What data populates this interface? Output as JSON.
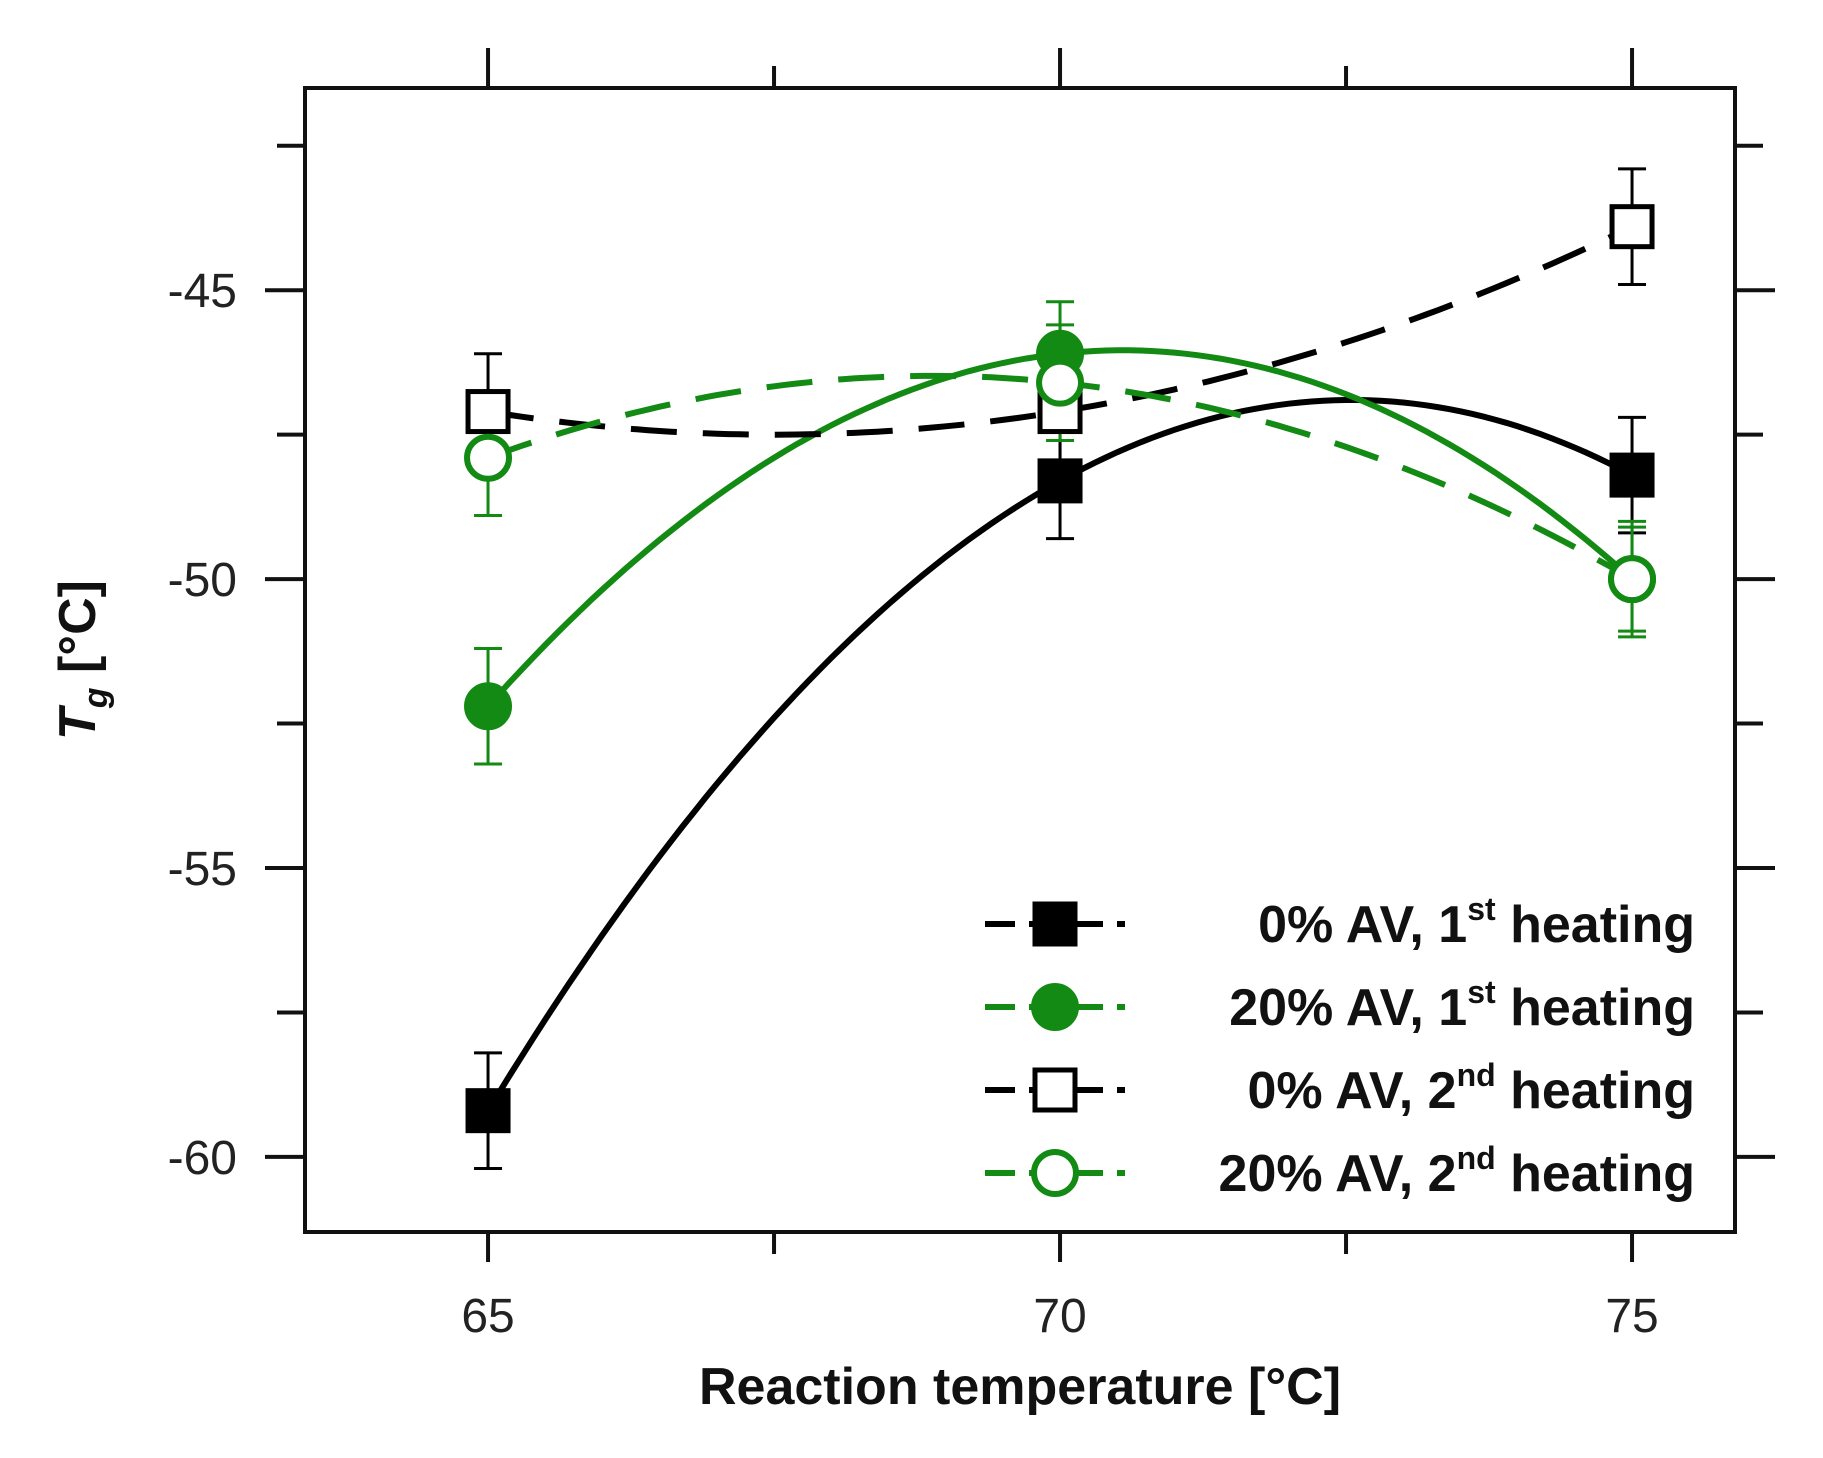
{
  "chart_data": {
    "type": "line",
    "title": "",
    "xlabel": "Reaction temperature [°C]",
    "ylabel": "T",
    "ylabel_subscript": "g",
    "ylabel_unit": " [°C]",
    "xlim": [
      63.4,
      75.9
    ],
    "ylim": [
      -61.3,
      -41.5
    ],
    "x_ticks": [
      65,
      70,
      75
    ],
    "x_tick_labels": [
      "65",
      "70",
      "75"
    ],
    "x_minor_ticks": [
      67.5,
      72.5
    ],
    "y_ticks": [
      -45,
      -50,
      -55,
      -60
    ],
    "y_tick_labels": [
      "-45",
      "-50",
      "-55",
      "-60"
    ],
    "y_minor_ticks": [
      -42.5,
      -47.5,
      -52.5,
      -57.5
    ],
    "legend_position": "bottom-right",
    "series": [
      {
        "name": "0% AV, 1st heating",
        "legend_main": "0% AV, 1",
        "legend_sup": "st",
        "legend_tail": " heating",
        "x": [
          65,
          70,
          75
        ],
        "y": [
          -59.2,
          -48.3,
          -48.2
        ],
        "yerr": [
          1.0,
          1.0,
          1.0
        ],
        "color": "#000000",
        "marker": "square",
        "filled": true,
        "fit": "solid"
      },
      {
        "name": "20% AV, 1st heating",
        "legend_main": "20% AV, 1",
        "legend_sup": "st",
        "legend_tail": " heating",
        "x": [
          65,
          70,
          75
        ],
        "y": [
          -52.2,
          -46.1,
          -50.0
        ],
        "yerr": [
          1.0,
          0.9,
          0.9
        ],
        "color": "#138a13",
        "marker": "circle",
        "filled": true,
        "fit": "solid"
      },
      {
        "name": "0% AV, 2nd heating",
        "legend_main": "0% AV, 2",
        "legend_sup": "nd",
        "legend_tail": " heating",
        "x": [
          65,
          70,
          75
        ],
        "y": [
          -47.1,
          -47.1,
          -43.9
        ],
        "yerr": [
          1.0,
          1.0,
          1.0
        ],
        "color": "#000000",
        "marker": "square",
        "filled": false,
        "fit": "dashed"
      },
      {
        "name": "20% AV, 2nd heating",
        "legend_main": "20% AV, 2",
        "legend_sup": "nd",
        "legend_tail": " heating",
        "x": [
          65,
          70,
          75
        ],
        "y": [
          -47.9,
          -46.6,
          -50.0
        ],
        "yerr": [
          1.0,
          1.0,
          1.0
        ],
        "color": "#138a13",
        "marker": "circle",
        "filled": false,
        "fit": "dashed"
      }
    ]
  }
}
